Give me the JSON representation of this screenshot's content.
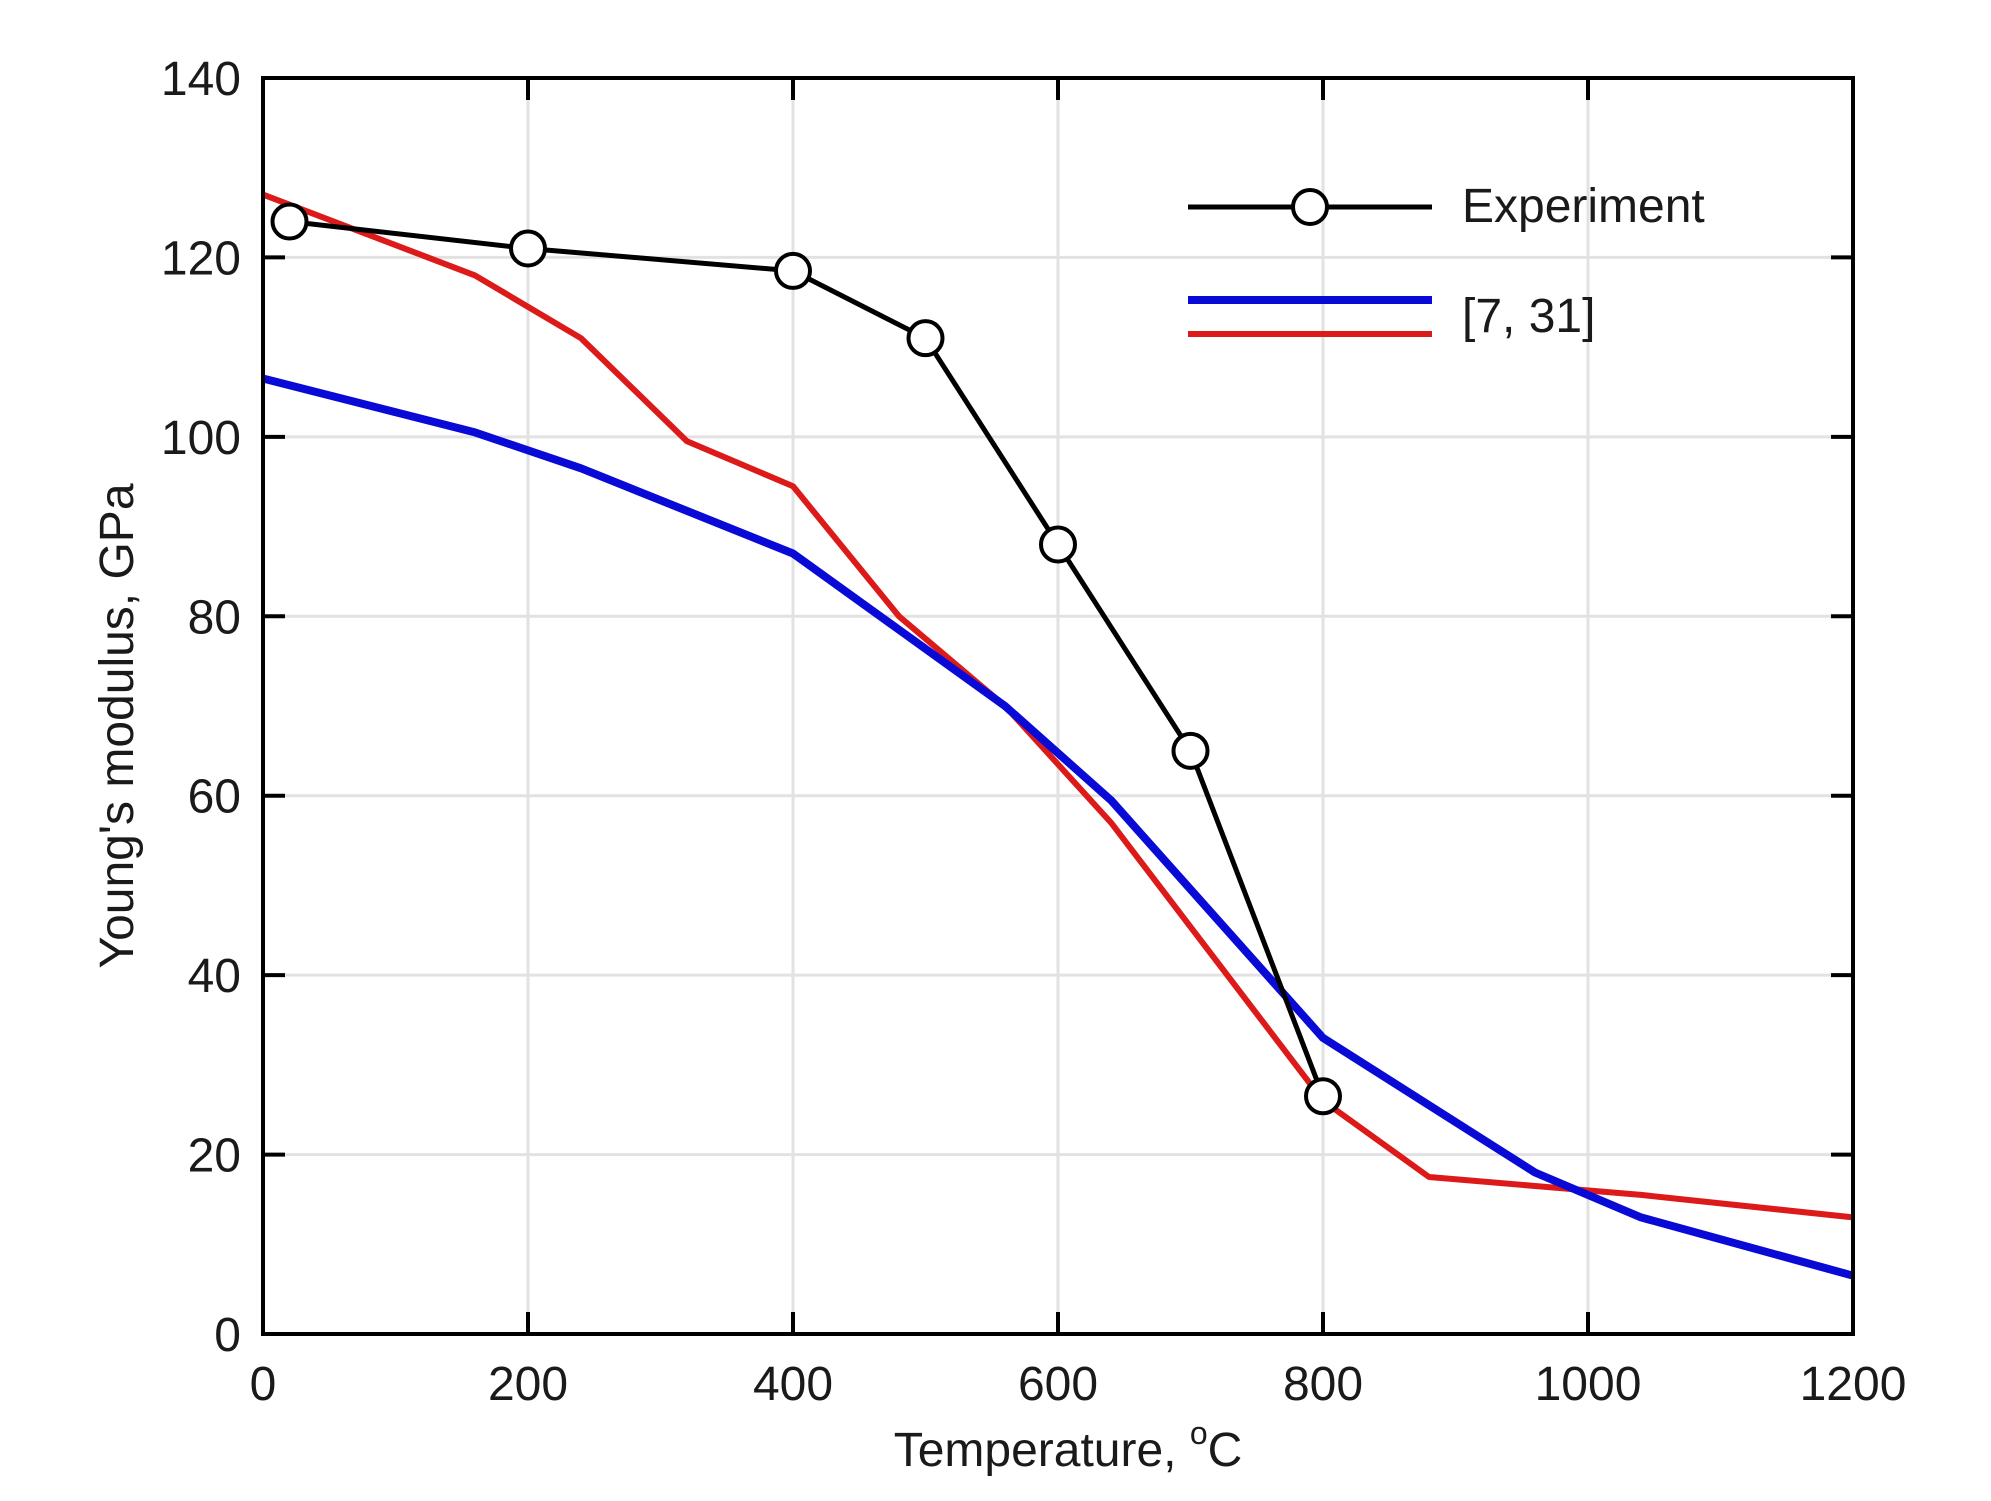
{
  "chart_data": {
    "type": "line",
    "title": "",
    "xlabel": "Temperature, ",
    "xlabel_unit_sup": "o",
    "xlabel_unit": "C",
    "ylabel": "Young's modulus, GPa",
    "xlim": [
      0,
      1200
    ],
    "ylim": [
      0,
      140
    ],
    "xticks": [
      0,
      200,
      400,
      600,
      800,
      1000,
      1200
    ],
    "yticks": [
      0,
      20,
      40,
      60,
      80,
      100,
      120,
      140
    ],
    "xtick_labels": [
      "0",
      "200",
      "400",
      "600",
      "800",
      "1000",
      "1200"
    ],
    "ytick_labels": [
      "0",
      "20",
      "40",
      "60",
      "80",
      "100",
      "120",
      "140"
    ],
    "grid": true,
    "legend_position": "top-right",
    "legend": {
      "experiment_label": "Experiment",
      "reference_label": "[7, 31]"
    },
    "series": [
      {
        "name": "Experiment",
        "color": "#000000",
        "marker": "circle-open",
        "x": [
          20,
          200,
          400,
          500,
          600,
          700,
          800
        ],
        "y": [
          124,
          121,
          118.5,
          111,
          88,
          65,
          26.5
        ]
      },
      {
        "name": "[7, 31] (blue)",
        "color": "#0a0ad6",
        "marker": "none",
        "x": [
          0,
          160,
          240,
          400,
          560,
          640,
          800,
          960,
          1040,
          1200
        ],
        "y": [
          106.5,
          100.5,
          96.5,
          87,
          70,
          59.5,
          33,
          18,
          13,
          6.5
        ]
      },
      {
        "name": "[7, 31] (red)",
        "color": "#dd1a1a",
        "marker": "none",
        "x": [
          0,
          160,
          240,
          320,
          400,
          480,
          560,
          640,
          800,
          880,
          960,
          1040,
          1200
        ],
        "y": [
          127,
          118,
          111,
          99.5,
          94.5,
          80,
          70,
          57,
          26,
          17.5,
          16.5,
          15.5,
          13
        ]
      }
    ]
  }
}
